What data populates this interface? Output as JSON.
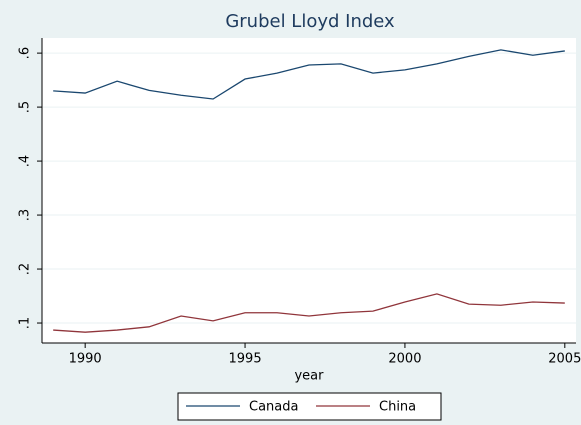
{
  "chart_data": {
    "type": "line",
    "title": "Grubel Lloyd Index",
    "xlabel": "year",
    "x": [
      1989,
      1990,
      1991,
      1992,
      1993,
      1994,
      1995,
      1996,
      1997,
      1998,
      1999,
      2000,
      2001,
      2002,
      2003,
      2004,
      2005
    ],
    "series": [
      {
        "name": "Canada",
        "color": "#1a476f",
        "values": [
          0.53,
          0.526,
          0.548,
          0.531,
          0.522,
          0.515,
          0.552,
          0.563,
          0.578,
          0.58,
          0.563,
          0.569,
          0.58,
          0.594,
          0.606,
          0.596,
          0.604
        ]
      },
      {
        "name": "China",
        "color": "#90353b",
        "values": [
          0.087,
          0.083,
          0.087,
          0.093,
          0.113,
          0.104,
          0.119,
          0.119,
          0.113,
          0.119,
          0.122,
          0.139,
          0.154,
          0.135,
          0.133,
          0.139,
          0.137
        ]
      }
    ],
    "xlim": [
      1988.65,
      2005.35
    ],
    "xticks": [
      1990,
      1995,
      2000,
      2005
    ],
    "ylim": [
      0.063,
      0.628
    ],
    "yticks": [
      {
        "value": 0.1,
        "label": ".1"
      },
      {
        "value": 0.2,
        "label": ".2"
      },
      {
        "value": 0.3,
        "label": ".3"
      },
      {
        "value": 0.4,
        "label": ".4"
      },
      {
        "value": 0.5,
        "label": ".5"
      },
      {
        "value": 0.6,
        "label": ".6"
      }
    ],
    "grid": true
  }
}
